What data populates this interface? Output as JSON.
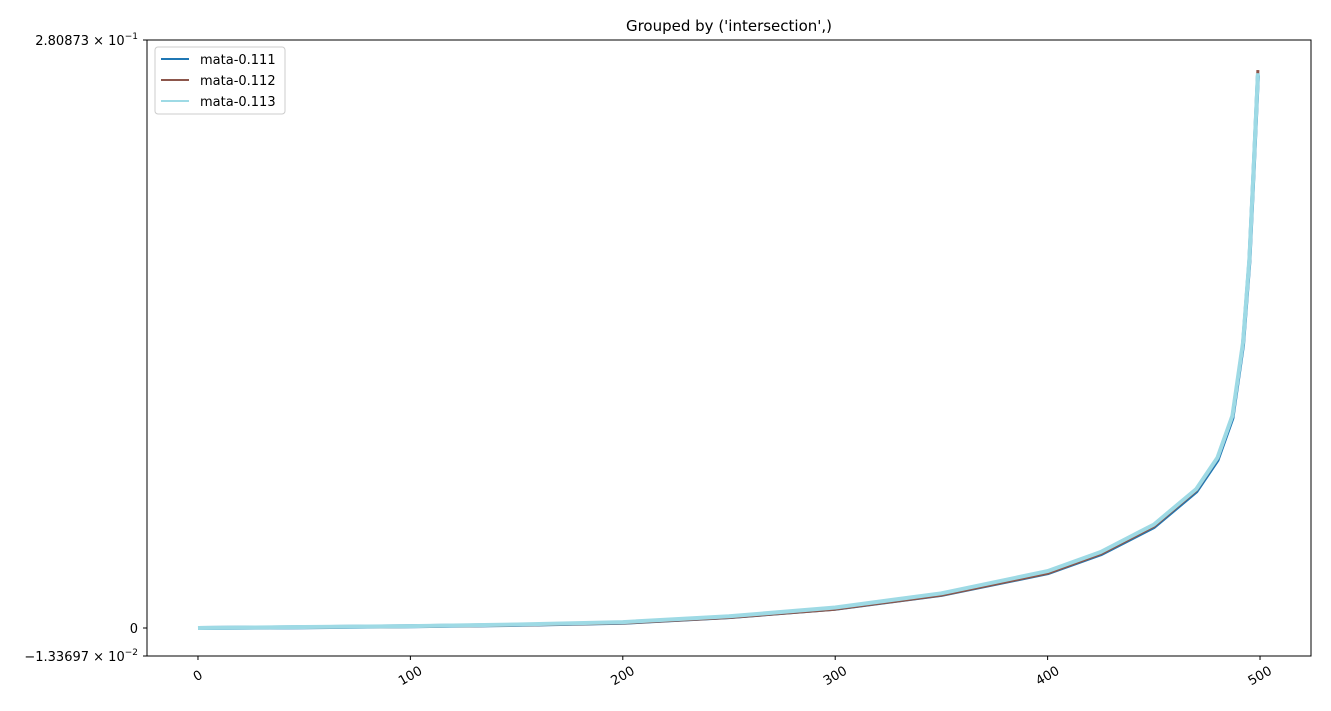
{
  "chart_data": {
    "type": "line",
    "title": "Grouped by ('intersection',)",
    "xlabel": "",
    "ylabel": "",
    "xlim": [
      -24,
      524
    ],
    "ylim": [
      -0.0133697,
      0.280873
    ],
    "x_ticks": [
      0,
      100,
      200,
      300,
      400,
      500
    ],
    "y_ticks": [
      {
        "value": 0.280873,
        "mantissa": "2.80873",
        "exponent": "−1"
      },
      {
        "value": 0,
        "plain": "0"
      },
      {
        "value": -0.0133697,
        "mantissa": "−1.33697",
        "exponent": "−2"
      }
    ],
    "grid": false,
    "legend_position": "top-left",
    "series": [
      {
        "name": "mata-0.111",
        "color": "#1f77b4",
        "x": [
          0,
          50,
          100,
          150,
          200,
          250,
          300,
          350,
          400,
          425,
          450,
          470,
          480,
          487,
          492,
          495,
          497,
          499
        ],
        "y": [
          0,
          0.0004,
          0.0008,
          0.0015,
          0.0025,
          0.0052,
          0.0092,
          0.0158,
          0.0262,
          0.0352,
          0.0482,
          0.0652,
          0.0802,
          0.1002,
          0.1352,
          0.1752,
          0.2182,
          0.264
        ]
      },
      {
        "name": "mata-0.112",
        "color": "#8c564b",
        "x": [
          0,
          50,
          100,
          150,
          200,
          250,
          300,
          350,
          400,
          425,
          450,
          470,
          480,
          487,
          492,
          495,
          497,
          499
        ],
        "y": [
          0,
          0.0003,
          0.0007,
          0.0014,
          0.0024,
          0.005,
          0.009,
          0.0157,
          0.0262,
          0.0354,
          0.0486,
          0.0658,
          0.081,
          0.1012,
          0.1365,
          0.1768,
          0.22,
          0.2665
        ]
      },
      {
        "name": "mata-0.113",
        "color": "#9edae5",
        "x": [
          0,
          50,
          100,
          150,
          200,
          250,
          300,
          350,
          400,
          425,
          450,
          470,
          480,
          487,
          492,
          495,
          497,
          499
        ],
        "y": [
          0,
          0.0005,
          0.0009,
          0.0017,
          0.0028,
          0.0056,
          0.0098,
          0.0166,
          0.0272,
          0.0363,
          0.0494,
          0.0664,
          0.0814,
          0.1014,
          0.1364,
          0.1764,
          0.2194,
          0.265
        ]
      }
    ]
  }
}
